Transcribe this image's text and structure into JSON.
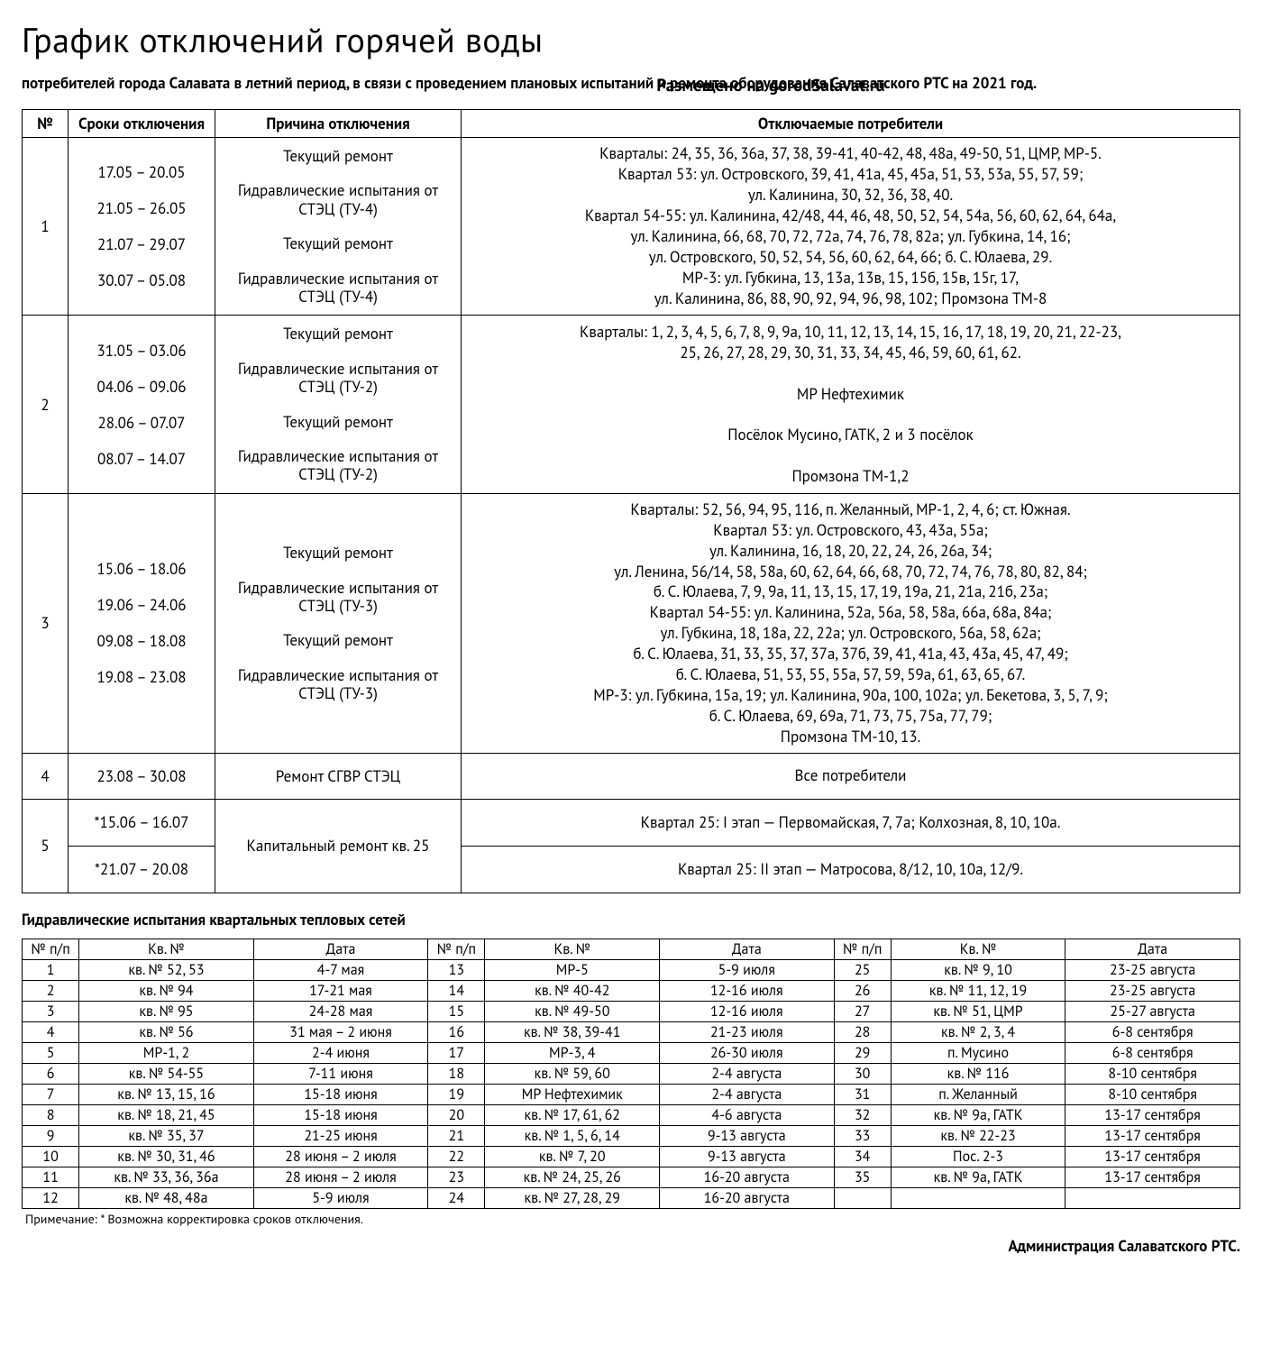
{
  "title": "График отключений горячей воды",
  "subtitle": "потребителей города Салавата в летний период, в связи с проведением плановых испытаний и ремонта оборудования Салаватского РТС на 2021 год.",
  "posted": "Размещено на gorodSalavat.ru",
  "main_table": {
    "headers": {
      "num": "№",
      "dates": "Сроки отключения",
      "reason": "Причина отключения",
      "consumers": "Отключаемые потребители"
    },
    "rows": [
      {
        "num": "1",
        "dates": [
          "17.05 – 20.05",
          "21.05 – 26.05",
          "21.07 – 29.07",
          "30.07 – 05.08"
        ],
        "reasons": [
          "Текущий ремонт",
          "Гидравлические испытания от СТЭЦ (ТУ-4)",
          "Текущий ремонт",
          "Гидравлические испытания от СТЭЦ (ТУ-4)"
        ],
        "consumers": "Кварталы: 24, 35, 36, 36а, 37, 38, 39-41, 40-42, 48, 48а, 49-50, 51, ЦМР, МР-5.\nКвартал 53: ул. Островского, 39, 41, 41а, 45, 45а, 51, 53, 53а, 55, 57, 59;\nул. Калинина, 30, 32, 36, 38, 40.\nКвартал 54-55: ул. Калинина, 42/48, 44, 46, 48, 50, 52, 54, 54а, 56, 60, 62, 64, 64а,\nул. Калинина, 66, 68, 70, 72, 72а, 74, 76, 78, 82а; ул. Губкина, 14, 16;\nул. Островского, 50, 52, 54, 56, 60, 62, 64, 66; б. С. Юлаева, 29.\nМР-3: ул. Губкина, 13, 13а, 13в, 15, 15б, 15в, 15г, 17,\nул. Калинина, 86, 88, 90, 92, 94, 96, 98, 102; Промзона ТМ-8"
      },
      {
        "num": "2",
        "dates": [
          "31.05 – 03.06",
          "04.06 – 09.06",
          "28.06 – 07.07",
          "08.07 – 14.07"
        ],
        "reasons": [
          "Текущий ремонт",
          "Гидравлические испытания от СТЭЦ (ТУ-2)",
          "Текущий ремонт",
          "Гидравлические испытания от СТЭЦ (ТУ-2)"
        ],
        "consumers": "Кварталы: 1, 2, 3, 4, 5, 6, 7, 8, 9, 9а, 10, 11, 12, 13, 14, 15, 16, 17, 18, 19, 20, 21, 22-23,\n25, 26, 27, 28, 29, 30, 31, 33, 34, 45, 46, 59, 60, 61, 62.\n\nМР Нефтехимик\n\nПосёлок Мусино, ГАТК, 2 и 3 посёлок\n\nПромзона ТМ-1,2"
      },
      {
        "num": "3",
        "dates": [
          "15.06 – 18.06",
          "19.06 – 24.06",
          "09.08 – 18.08",
          "19.08 – 23.08"
        ],
        "reasons": [
          "Текущий ремонт",
          "Гидравлические испытания от СТЭЦ (ТУ-3)",
          "Текущий ремонт",
          "Гидравлические испытания от СТЭЦ (ТУ-3)"
        ],
        "consumers": "Кварталы: 52, 56, 94, 95, 116, п. Желанный, МР-1, 2, 4, 6; ст. Южная.\nКвартал 53: ул. Островского, 43, 43а, 55а;\nул. Калинина, 16, 18, 20, 22, 24, 26, 26а, 34;\nул. Ленина, 56/14, 58, 58а, 60, 62, 64, 66, 68, 70, 72, 74, 76, 78, 80, 82, 84;\nб. С. Юлаева, 7, 9, 9а, 11, 13, 15, 17, 19, 19а, 21, 21а, 21б, 23а;\nКвартал 54-55: ул. Калинина, 52а, 56а, 58, 58а, 66а, 68а, 84а;\nул. Губкина, 18, 18а, 22, 22а; ул. Островского, 56а, 58, 62а;\nб. С. Юлаева, 31, 33, 35, 37, 37а, 37б, 39, 41, 41а, 43, 43а, 45, 47, 49;\nб. С. Юлаева, 51, 53, 55, 55а, 57, 59, 59а, 61, 63, 65, 67.\nМР-3: ул. Губкина, 15а, 19; ул. Калинина, 90а, 100, 102а; ул. Бекетова, 3, 5, 7, 9;\nб. С. Юлаева, 69, 69а, 71, 73, 75, 75а, 77, 79;\nПромзона ТМ-10, 13."
      },
      {
        "num": "4",
        "dates_single": "23.08 – 30.08",
        "reason_single": "Ремонт СГВР СТЭЦ",
        "consumers": "Все потребители"
      },
      {
        "num": "5",
        "split": [
          {
            "dates": "*15.06 – 16.07",
            "consumers": "Квартал 25: I этап — Первомайская, 7, 7а; Колхозная, 8, 10, 10а."
          },
          {
            "dates": "*21.07 – 20.08",
            "consumers": "Квартал 25: II этап — Матросова, 8/12, 10, 10а, 12/9."
          }
        ],
        "reason_single": "Капитальный ремонт кв. 25"
      }
    ]
  },
  "section2_title": "Гидравлические испытания квартальных тепловых сетей",
  "small_table": {
    "headers": {
      "num": "№ п/п",
      "kv": "Кв. №",
      "date": "Дата"
    },
    "rows": [
      {
        "n": "1",
        "kv": "кв. № 52, 53",
        "d": "4-7 мая"
      },
      {
        "n": "2",
        "kv": "кв. № 94",
        "d": "17-21 мая"
      },
      {
        "n": "3",
        "kv": "кв. № 95",
        "d": "24-28 мая"
      },
      {
        "n": "4",
        "kv": "кв. № 56",
        "d": "31 мая – 2 июня"
      },
      {
        "n": "5",
        "kv": "МР-1, 2",
        "d": "2-4 июня"
      },
      {
        "n": "6",
        "kv": "кв. № 54-55",
        "d": "7-11 июня"
      },
      {
        "n": "7",
        "kv": "кв. № 13, 15, 16",
        "d": "15-18 июня"
      },
      {
        "n": "8",
        "kv": "кв. № 18, 21, 45",
        "d": "15-18 июня"
      },
      {
        "n": "9",
        "kv": "кв. № 35, 37",
        "d": "21-25 июня"
      },
      {
        "n": "10",
        "kv": "кв. № 30, 31, 46",
        "d": "28 июня – 2 июля"
      },
      {
        "n": "11",
        "kv": "кв. № 33, 36, 36а",
        "d": "28 июня – 2 июля"
      },
      {
        "n": "12",
        "kv": "кв. № 48, 48а",
        "d": "5-9 июля"
      },
      {
        "n": "13",
        "kv": "МР-5",
        "d": "5-9 июля"
      },
      {
        "n": "14",
        "kv": "кв. № 40-42",
        "d": "12-16 июля"
      },
      {
        "n": "15",
        "kv": "кв. № 49-50",
        "d": "12-16 июля"
      },
      {
        "n": "16",
        "kv": "кв. № 38, 39-41",
        "d": "21-23 июля"
      },
      {
        "n": "17",
        "kv": "МР-3, 4",
        "d": "26-30 июля"
      },
      {
        "n": "18",
        "kv": "кв. № 59, 60",
        "d": "2-4 августа"
      },
      {
        "n": "19",
        "kv": "МР Нефтехимик",
        "d": "2-4 августа"
      },
      {
        "n": "20",
        "kv": "кв. № 17, 61, 62",
        "d": "4-6 августа"
      },
      {
        "n": "21",
        "kv": "кв. № 1, 5, 6, 14",
        "d": "9-13 августа"
      },
      {
        "n": "22",
        "kv": "кв. № 7, 20",
        "d": "9-13 августа"
      },
      {
        "n": "23",
        "kv": "кв. № 24, 25, 26",
        "d": "16-20 августа"
      },
      {
        "n": "24",
        "kv": "кв. № 27, 28, 29",
        "d": "16-20 августа"
      },
      {
        "n": "25",
        "kv": "кв. № 9, 10",
        "d": "23-25 августа"
      },
      {
        "n": "26",
        "kv": "кв. № 11, 12, 19",
        "d": "23-25 августа"
      },
      {
        "n": "27",
        "kv": "кв. № 51, ЦМР",
        "d": "25-27 августа"
      },
      {
        "n": "28",
        "kv": "кв. № 2, 3, 4",
        "d": "6-8 сентября"
      },
      {
        "n": "29",
        "kv": "п. Мусино",
        "d": "6-8 сентября"
      },
      {
        "n": "30",
        "kv": "кв. № 116",
        "d": "8-10 сентября"
      },
      {
        "n": "31",
        "kv": "п. Желанный",
        "d": "8-10 сентября"
      },
      {
        "n": "32",
        "kv": "кв. № 9а, ГАТК",
        "d": "13-17 сентября"
      },
      {
        "n": "33",
        "kv": "кв. № 22-23",
        "d": "13-17 сентября"
      },
      {
        "n": "34",
        "kv": "Пос. 2-3",
        "d": "13-17 сентября"
      },
      {
        "n": "35",
        "kv": "кв. № 9а, ГАТК",
        "d": "13-17 сентября"
      },
      {
        "n": "",
        "kv": "",
        "d": ""
      }
    ]
  },
  "footnote": "Примечание: * Возможна корректировка сроков отключения.",
  "signature": "Администрация Салаватского РТС."
}
